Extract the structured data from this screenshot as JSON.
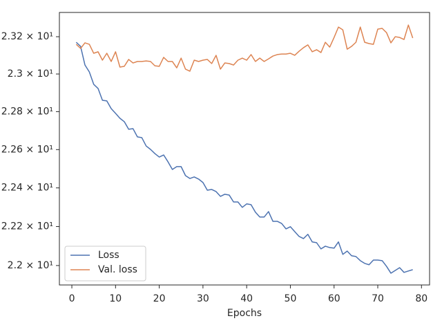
{
  "chart_data": {
    "type": "line",
    "xlabel": "Epochs",
    "yscale": "log",
    "legend": "lower left",
    "grid": false,
    "x": [
      1,
      2,
      3,
      4,
      5,
      6,
      7,
      8,
      9,
      10,
      11,
      12,
      13,
      14,
      15,
      16,
      17,
      18,
      19,
      20,
      21,
      22,
      23,
      24,
      25,
      26,
      27,
      28,
      29,
      30,
      31,
      32,
      33,
      34,
      35,
      36,
      37,
      38,
      39,
      40,
      41,
      42,
      43,
      44,
      45,
      46,
      47,
      48,
      49,
      50,
      51,
      52,
      53,
      54,
      55,
      56,
      57,
      58,
      59,
      60,
      61,
      62,
      63,
      64,
      65,
      66,
      67,
      68,
      69,
      70,
      71,
      72,
      73,
      74,
      75,
      76,
      77,
      78
    ],
    "series": [
      {
        "name": "Loss",
        "color": "#4c72b0",
        "values": [
          23.17,
          23.148,
          23.048,
          23.011,
          22.945,
          22.923,
          22.86,
          22.857,
          22.816,
          22.791,
          22.765,
          22.747,
          22.707,
          22.71,
          22.667,
          22.663,
          22.619,
          22.601,
          22.579,
          22.561,
          22.572,
          22.536,
          22.496,
          22.511,
          22.511,
          22.464,
          22.449,
          22.457,
          22.446,
          22.428,
          22.388,
          22.392,
          22.381,
          22.356,
          22.367,
          22.363,
          22.327,
          22.327,
          22.299,
          22.317,
          22.313,
          22.274,
          22.249,
          22.249,
          22.277,
          22.227,
          22.227,
          22.216,
          22.188,
          22.199,
          22.174,
          22.149,
          22.138,
          22.16,
          22.121,
          22.117,
          22.085,
          22.099,
          22.092,
          22.089,
          22.121,
          22.057,
          22.074,
          22.05,
          22.046,
          22.025,
          22.011,
          22.004,
          22.028,
          22.028,
          22.025,
          21.996,
          21.961,
          21.975,
          21.989,
          21.965,
          21.972,
          21.979
        ]
      },
      {
        "name": "Val. loss",
        "color": "#dd8452",
        "values": [
          23.159,
          23.137,
          23.167,
          23.159,
          23.111,
          23.119,
          23.074,
          23.111,
          23.067,
          23.119,
          23.037,
          23.041,
          23.078,
          23.059,
          23.067,
          23.067,
          23.07,
          23.067,
          23.044,
          23.041,
          23.089,
          23.067,
          23.067,
          23.033,
          23.085,
          23.026,
          23.015,
          23.074,
          23.067,
          23.074,
          23.078,
          23.056,
          23.1,
          23.026,
          23.059,
          23.056,
          23.048,
          23.074,
          23.085,
          23.074,
          23.104,
          23.067,
          23.085,
          23.067,
          23.081,
          23.096,
          23.104,
          23.107,
          23.107,
          23.111,
          23.1,
          23.122,
          23.141,
          23.156,
          23.119,
          23.13,
          23.115,
          23.17,
          23.144,
          23.196,
          23.252,
          23.237,
          23.133,
          23.148,
          23.17,
          23.252,
          23.17,
          23.163,
          23.159,
          23.241,
          23.245,
          23.222,
          23.167,
          23.2,
          23.196,
          23.185,
          23.263,
          23.193
        ]
      }
    ],
    "xlim": [
      -2.85,
      81.85
    ],
    "xticks": [
      0,
      10,
      20,
      30,
      40,
      50,
      60,
      70,
      80
    ],
    "ylim": [
      21.901,
      23.331
    ],
    "yticks": [
      {
        "value": 22.0,
        "label": "2.2 × 10¹"
      },
      {
        "value": 22.2,
        "label": "2.22 × 10¹"
      },
      {
        "value": 22.4,
        "label": "2.24 × 10¹"
      },
      {
        "value": 22.6,
        "label": "2.26 × 10¹"
      },
      {
        "value": 22.8,
        "label": "2.28 × 10¹"
      },
      {
        "value": 23.0,
        "label": "2.3 × 10¹"
      },
      {
        "value": 23.2,
        "label": "2.32 × 10¹"
      }
    ]
  }
}
